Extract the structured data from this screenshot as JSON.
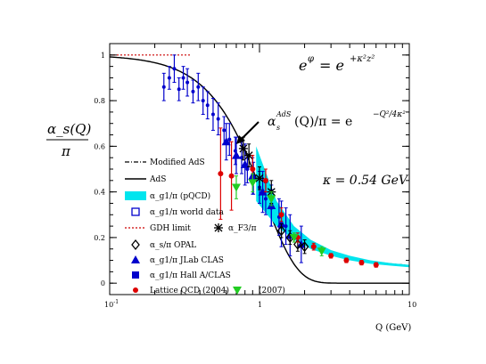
{
  "chart_data": {
    "type": "scatter",
    "title": "",
    "xlabel": "Q (GeV)",
    "ylabel_num": "α_s(Q)",
    "ylabel_den": "π",
    "xscale": "log",
    "xlim": [
      0.1,
      10
    ],
    "ylim": [
      -0.05,
      1.05
    ],
    "x_ticks": [
      {
        "value": 0.1,
        "base": "10",
        "exp": "-1"
      },
      {
        "value": 1,
        "base": "1",
        "exp": ""
      },
      {
        "value": 10,
        "base": "10",
        "exp": ""
      }
    ],
    "y_ticks": [
      {
        "value": 0,
        "label": "0"
      },
      {
        "value": 0.2,
        "label": "0.2"
      },
      {
        "value": 0.4,
        "label": "0.4"
      },
      {
        "value": 0.6,
        "label": "0.6"
      },
      {
        "value": 0.8,
        "label": "0.8"
      },
      {
        "value": 1.0,
        "label": "1"
      }
    ],
    "annotations": {
      "dilaton": "e^φ = e^{+κ²z²}",
      "dilaton_base": "e",
      "dilaton_exp_lhs": "φ",
      "dilaton_eq": "= e",
      "dilaton_exp_rhs": "+κ²z²",
      "ads_formula": "α_s^{AdS}(Q)/π = e^{-Q²/4κ²}",
      "ads_formula_lhs": "α",
      "ads_formula_sub": "s",
      "ads_formula_sup": "AdS",
      "ads_formula_mid": "(Q)/π = e",
      "ads_formula_exp": "−Q²/4κ²",
      "kappa": "κ = 0.54 GeV"
    },
    "legend": {
      "placement": "left",
      "entries": [
        {
          "label": "Modified AdS",
          "style": "dashdot",
          "color": "#000000"
        },
        {
          "label": "AdS",
          "style": "line",
          "color": "#000000"
        },
        {
          "label": "α_g1/π (pQCD)",
          "style": "band",
          "color": "#00e5ee"
        },
        {
          "label": "α_g1/π world data",
          "style": "open-square",
          "color": "#0000cc"
        },
        {
          "label": "GDH limit",
          "style": "dotted",
          "color": "#cc0000"
        },
        {
          "label": "α_F3/π",
          "style": "asterisk",
          "color": "#000000"
        },
        {
          "label": "α_s/π OPAL",
          "style": "open-diamond",
          "color": "#000000"
        },
        {
          "label": "α_g1/π JLab CLAS",
          "style": "triangle-up",
          "color": "#0000cc"
        },
        {
          "label": "α_g1/π Hall A/CLAS",
          "style": "filled-square",
          "color": "#0000cc"
        },
        {
          "label": "Lattice QCD (2004)",
          "style": "filled-circle",
          "color": "#dd0000"
        },
        {
          "label": "(2007)",
          "style": "triangle-down",
          "color": "#22cc22"
        }
      ]
    },
    "series": [
      {
        "name": "AdS",
        "function": "exp(-Q^2/(4*0.54^2))"
      },
      {
        "name": "Modified AdS",
        "x": [
          1.0,
          1.3,
          1.7,
          2.2,
          3.0,
          4.0,
          5.5,
          7.5,
          10.0
        ],
        "y": [
          0.43,
          0.31,
          0.23,
          0.17,
          0.13,
          0.11,
          0.095,
          0.085,
          0.078
        ]
      },
      {
        "name": "α_g1/π (pQCD)",
        "x": [
          0.95,
          1.3,
          1.7,
          2.2,
          3.0,
          4.0,
          5.5,
          7.5,
          10.0
        ],
        "y_low": [
          0.36,
          0.25,
          0.19,
          0.15,
          0.12,
          0.1,
          0.085,
          0.077,
          0.07
        ],
        "y_high": [
          0.6,
          0.36,
          0.25,
          0.19,
          0.145,
          0.12,
          0.1,
          0.088,
          0.08
        ]
      },
      {
        "name": "GDH limit",
        "x": [
          0.1,
          0.2,
          0.35
        ],
        "y": [
          1.0,
          1.0,
          1.0
        ]
      },
      {
        "name": "α_g1/π world data",
        "x": [
          0.23,
          0.25,
          0.27,
          0.29,
          0.31,
          0.33,
          0.36,
          0.39,
          0.42,
          0.45,
          0.49,
          0.53,
          0.58,
          0.63,
          0.69,
          0.76,
          0.83,
          0.91,
          1.0,
          1.1,
          1.2,
          1.35,
          1.5
        ],
        "y": [
          0.86,
          0.9,
          0.94,
          0.85,
          0.9,
          0.88,
          0.84,
          0.86,
          0.8,
          0.78,
          0.74,
          0.72,
          0.67,
          0.63,
          0.58,
          0.55,
          0.5,
          0.46,
          0.42,
          0.37,
          0.33,
          0.29,
          0.25
        ],
        "err": [
          0.06,
          0.05,
          0.06,
          0.05,
          0.05,
          0.06,
          0.05,
          0.06,
          0.06,
          0.06,
          0.07,
          0.07,
          0.06,
          0.07,
          0.06,
          0.07,
          0.06,
          0.07,
          0.07,
          0.07,
          0.08,
          0.08,
          0.08
        ]
      },
      {
        "name": "α_g1/π JLab CLAS",
        "x": [
          0.6,
          0.7,
          0.8,
          0.9,
          1.05,
          1.2,
          1.4,
          1.6,
          1.9
        ],
        "y": [
          0.62,
          0.56,
          0.52,
          0.47,
          0.4,
          0.34,
          0.26,
          0.21,
          0.17
        ],
        "err": [
          0.08,
          0.08,
          0.09,
          0.08,
          0.09,
          0.09,
          0.1,
          0.09,
          0.08
        ]
      },
      {
        "name": "α_s/π OPAL",
        "x": [
          1.4,
          1.6,
          1.8,
          2.0
        ],
        "y": [
          0.23,
          0.2,
          0.17,
          0.16
        ],
        "err": [
          0.03,
          0.03,
          0.03,
          0.03
        ]
      },
      {
        "name": "α_F3/π",
        "x": [
          0.78,
          0.85,
          1.0,
          1.2
        ],
        "y": [
          0.59,
          0.56,
          0.46,
          0.4
        ],
        "err": [
          0.05,
          0.05,
          0.05,
          0.05
        ]
      },
      {
        "name": "Lattice QCD (2004)",
        "x": [
          0.55,
          0.65,
          0.9,
          1.1,
          1.4,
          1.8,
          2.3,
          3.0,
          3.8,
          4.8,
          6.0
        ],
        "y": [
          0.48,
          0.47,
          0.5,
          0.45,
          0.3,
          0.2,
          0.16,
          0.12,
          0.1,
          0.09,
          0.08
        ],
        "err": [
          0.2,
          0.15,
          0.06,
          0.05,
          0.03,
          0.02,
          0.015,
          0.01,
          0.01,
          0.01,
          0.01
        ]
      },
      {
        "name": "(2007)",
        "x": [
          0.7,
          0.9,
          1.2,
          1.7,
          2.6
        ],
        "y": [
          0.42,
          0.44,
          0.37,
          0.2,
          0.14
        ],
        "err": [
          0.05,
          0.04,
          0.03,
          0.02,
          0.02
        ]
      }
    ],
    "colors": {
      "axis": "#000000",
      "band": "#00e5ee",
      "blue": "#0000cc",
      "red": "#dd0000",
      "green": "#22cc22",
      "gdh": "#cc0000"
    }
  }
}
